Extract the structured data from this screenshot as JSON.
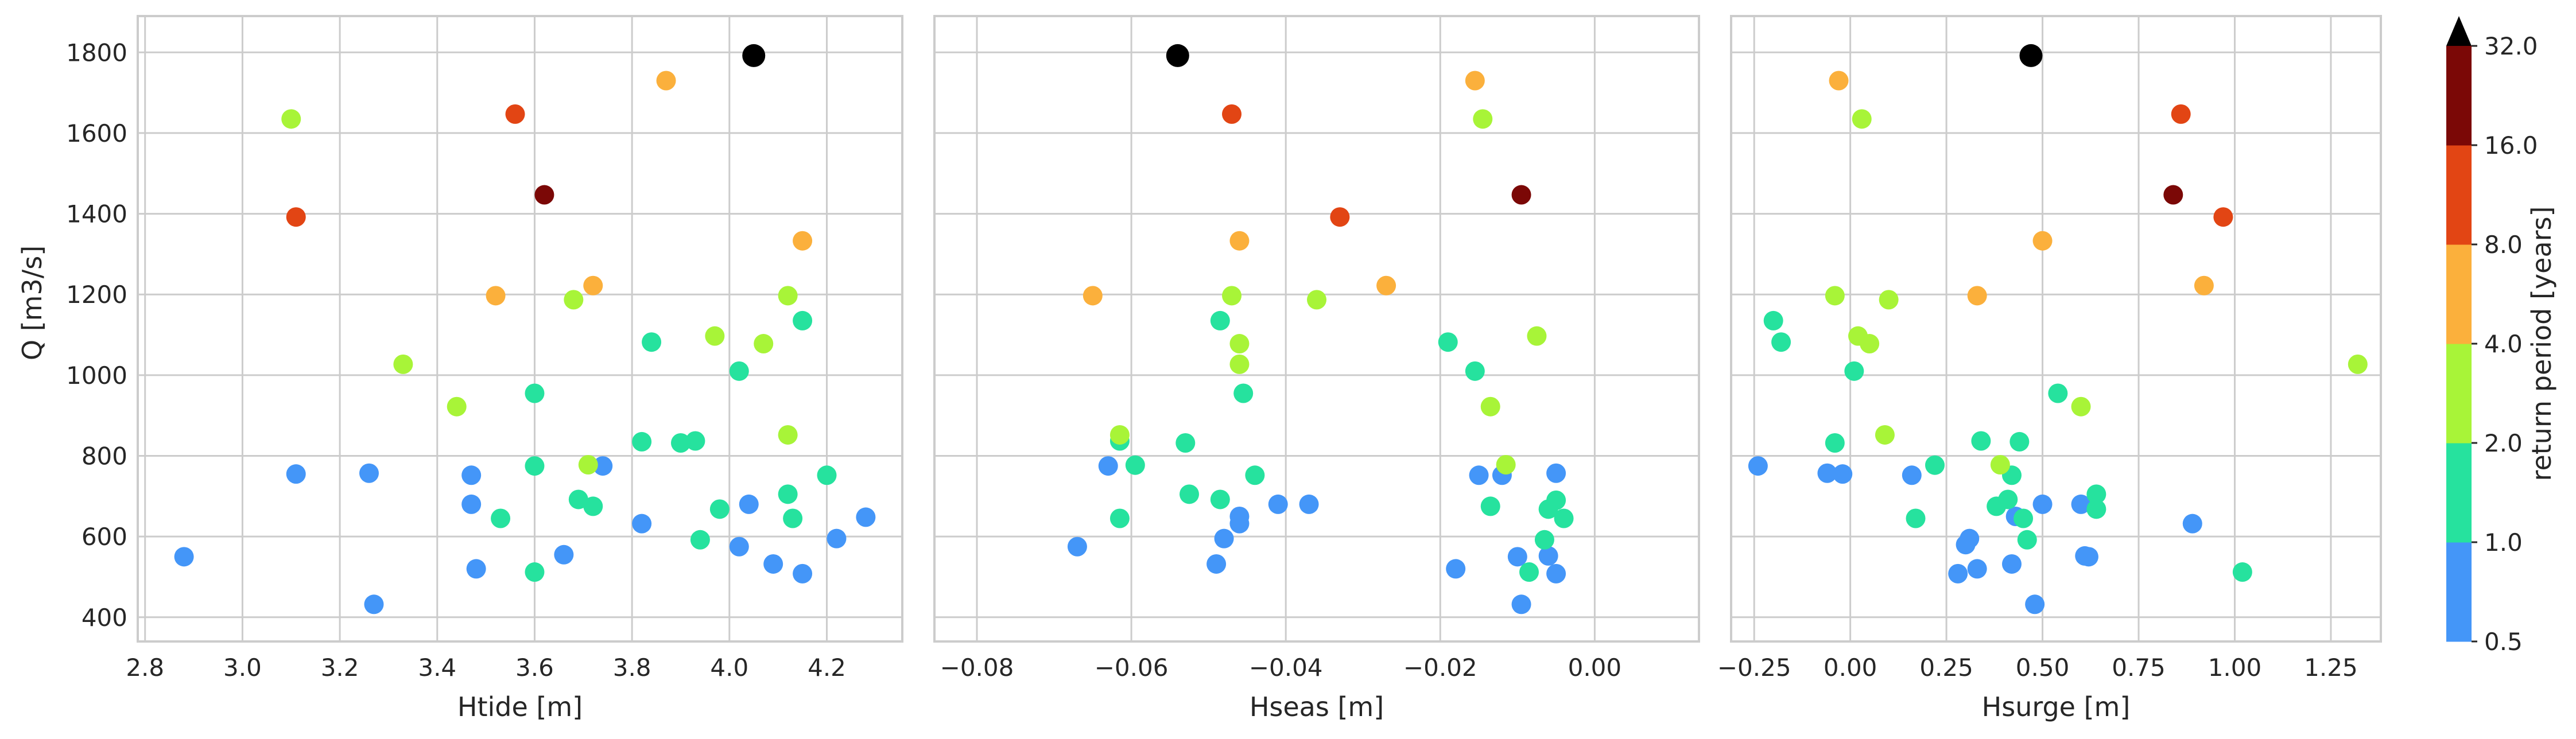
{
  "chart_data": {
    "type": "scatter",
    "colorbar": {
      "label": "return period [years]",
      "ticks": [
        "0.5",
        "1.0",
        "2.0",
        "4.0",
        "8.0",
        "16.0",
        "32.0"
      ],
      "bins": [
        {
          "range": [
            0.5,
            1.0
          ],
          "color": "#4496f8"
        },
        {
          "range": [
            1.0,
            2.0
          ],
          "color": "#26e29e"
        },
        {
          "range": [
            2.0,
            4.0
          ],
          "color": "#a8f438"
        },
        {
          "range": [
            4.0,
            8.0
          ],
          "color": "#fbb03c"
        },
        {
          "range": [
            8.0,
            16.0
          ],
          "color": "#e24514"
        },
        {
          "range": [
            16.0,
            32.0
          ],
          "color": "#7b0806"
        },
        {
          "range": [
            32.0,
            null
          ],
          "color": "#000000"
        }
      ],
      "extend": "max"
    },
    "ylabel": "Q [m3/s]",
    "ylim": [
      340,
      1890
    ],
    "yticks": [
      "400",
      "600",
      "800",
      "1000",
      "1200",
      "1400",
      "1600",
      "1800"
    ],
    "ytick_values": [
      400,
      600,
      800,
      1000,
      1200,
      1400,
      1600,
      1800
    ],
    "grid": true,
    "panels": [
      {
        "xlabel": "Htide [m]",
        "xlim": [
          2.785,
          4.355
        ],
        "xticks": [
          "2.8",
          "3.0",
          "3.2",
          "3.4",
          "3.6",
          "3.8",
          "4.0",
          "4.2"
        ],
        "xtick_values": [
          2.8,
          3.0,
          3.2,
          3.4,
          3.6,
          3.8,
          4.0,
          4.2
        ],
        "points": [
          [
            2.88,
            550,
            1
          ],
          [
            3.11,
            755,
            1
          ],
          [
            3.26,
            757,
            1
          ],
          [
            3.27,
            432,
            1
          ],
          [
            3.47,
            752,
            1
          ],
          [
            3.47,
            680,
            1
          ],
          [
            3.48,
            520,
            1
          ],
          [
            3.66,
            555,
            1
          ],
          [
            3.74,
            775,
            1
          ],
          [
            3.82,
            632,
            1
          ],
          [
            4.02,
            575,
            1
          ],
          [
            4.04,
            680,
            1
          ],
          [
            4.09,
            532,
            1
          ],
          [
            4.15,
            508,
            1
          ],
          [
            4.22,
            595,
            1
          ],
          [
            4.28,
            648,
            1
          ],
          [
            3.53,
            645,
            2
          ],
          [
            3.6,
            955,
            2
          ],
          [
            3.6,
            775,
            2
          ],
          [
            3.6,
            512,
            2
          ],
          [
            3.69,
            692,
            2
          ],
          [
            3.72,
            675,
            2
          ],
          [
            3.82,
            835,
            2
          ],
          [
            3.84,
            1082,
            2
          ],
          [
            3.9,
            832,
            2
          ],
          [
            3.93,
            837,
            2
          ],
          [
            3.94,
            592,
            2
          ],
          [
            3.98,
            668,
            2
          ],
          [
            4.02,
            1010,
            2
          ],
          [
            4.12,
            705,
            2
          ],
          [
            4.13,
            645,
            2
          ],
          [
            4.15,
            1135,
            2
          ],
          [
            4.2,
            752,
            2
          ],
          [
            3.1,
            1635,
            3
          ],
          [
            3.33,
            1027,
            3
          ],
          [
            3.44,
            922,
            3
          ],
          [
            3.68,
            1187,
            3
          ],
          [
            3.71,
            778,
            3
          ],
          [
            3.97,
            1097,
            3
          ],
          [
            4.07,
            1078,
            3
          ],
          [
            4.12,
            1197,
            3
          ],
          [
            4.12,
            852,
            3
          ],
          [
            3.52,
            1197,
            4
          ],
          [
            3.72,
            1222,
            4
          ],
          [
            3.87,
            1730,
            4
          ],
          [
            4.15,
            1333,
            4
          ],
          [
            3.11,
            1392,
            5
          ],
          [
            3.56,
            1647,
            5
          ],
          [
            3.62,
            1447,
            6
          ],
          [
            4.05,
            1792,
            7
          ]
        ]
      },
      {
        "xlabel": "Hseas [m]",
        "xlim": [
          -0.0855,
          0.0135
        ],
        "xticks": [
          "−0.08",
          "−0.06",
          "−0.04",
          "−0.02",
          "0.00"
        ],
        "xtick_values": [
          -0.08,
          -0.06,
          -0.04,
          -0.02,
          0.0
        ],
        "points": [
          [
            -0.067,
            575,
            1
          ],
          [
            -0.063,
            775,
            1
          ],
          [
            -0.049,
            532,
            1
          ],
          [
            -0.048,
            595,
            1
          ],
          [
            -0.046,
            632,
            1
          ],
          [
            -0.046,
            650,
            1
          ],
          [
            -0.041,
            680,
            1
          ],
          [
            -0.037,
            680,
            1
          ],
          [
            -0.018,
            520,
            1
          ],
          [
            -0.015,
            752,
            1
          ],
          [
            -0.012,
            752,
            1
          ],
          [
            -0.01,
            550,
            1
          ],
          [
            -0.0095,
            432,
            1
          ],
          [
            -0.006,
            552,
            1
          ],
          [
            -0.005,
            508,
            1
          ],
          [
            -0.005,
            757,
            1
          ],
          [
            -0.0615,
            837,
            2
          ],
          [
            -0.0615,
            645,
            2
          ],
          [
            -0.0595,
            777,
            2
          ],
          [
            -0.053,
            832,
            2
          ],
          [
            -0.0525,
            705,
            2
          ],
          [
            -0.0485,
            692,
            2
          ],
          [
            -0.0485,
            1135,
            2
          ],
          [
            -0.0455,
            955,
            2
          ],
          [
            -0.044,
            752,
            2
          ],
          [
            -0.019,
            1082,
            2
          ],
          [
            -0.0155,
            1010,
            2
          ],
          [
            -0.0135,
            675,
            2
          ],
          [
            -0.0085,
            512,
            2
          ],
          [
            -0.0065,
            592,
            2
          ],
          [
            -0.006,
            668,
            2
          ],
          [
            -0.005,
            690,
            2
          ],
          [
            -0.004,
            645,
            2
          ],
          [
            -0.0615,
            852,
            3
          ],
          [
            -0.047,
            1197,
            3
          ],
          [
            -0.046,
            1078,
            3
          ],
          [
            -0.046,
            1027,
            3
          ],
          [
            -0.036,
            1187,
            3
          ],
          [
            -0.0145,
            1635,
            3
          ],
          [
            -0.0135,
            922,
            3
          ],
          [
            -0.0115,
            778,
            3
          ],
          [
            -0.0075,
            1097,
            3
          ],
          [
            -0.065,
            1197,
            4
          ],
          [
            -0.046,
            1333,
            4
          ],
          [
            -0.027,
            1222,
            4
          ],
          [
            -0.0155,
            1730,
            4
          ],
          [
            -0.047,
            1647,
            5
          ],
          [
            -0.033,
            1392,
            5
          ],
          [
            -0.0095,
            1447,
            6
          ],
          [
            -0.054,
            1792,
            7
          ]
        ]
      },
      {
        "xlabel": "Hsurge [m]",
        "xlim": [
          -0.31,
          1.38
        ],
        "xticks": [
          "−0.25",
          "0.00",
          "0.25",
          "0.50",
          "0.75",
          "1.00",
          "1.25"
        ],
        "xtick_values": [
          -0.25,
          0.0,
          0.25,
          0.5,
          0.75,
          1.0,
          1.25
        ],
        "points": [
          [
            -0.24,
            775,
            1
          ],
          [
            -0.06,
            757,
            1
          ],
          [
            -0.02,
            755,
            1
          ],
          [
            0.16,
            752,
            1
          ],
          [
            0.28,
            508,
            1
          ],
          [
            0.3,
            580,
            1
          ],
          [
            0.31,
            595,
            1
          ],
          [
            0.33,
            520,
            1
          ],
          [
            0.42,
            532,
            1
          ],
          [
            0.43,
            650,
            1
          ],
          [
            0.48,
            432,
            1
          ],
          [
            0.5,
            680,
            1
          ],
          [
            0.6,
            680,
            1
          ],
          [
            0.61,
            552,
            1
          ],
          [
            0.62,
            550,
            1
          ],
          [
            0.89,
            632,
            1
          ],
          [
            -0.2,
            1135,
            2
          ],
          [
            -0.18,
            1082,
            2
          ],
          [
            -0.04,
            832,
            2
          ],
          [
            0.01,
            1010,
            2
          ],
          [
            0.17,
            645,
            2
          ],
          [
            0.22,
            777,
            2
          ],
          [
            0.34,
            837,
            2
          ],
          [
            0.38,
            675,
            2
          ],
          [
            0.41,
            692,
            2
          ],
          [
            0.42,
            752,
            2
          ],
          [
            0.44,
            835,
            2
          ],
          [
            0.45,
            645,
            2
          ],
          [
            0.46,
            592,
            2
          ],
          [
            0.54,
            955,
            2
          ],
          [
            0.64,
            705,
            2
          ],
          [
            0.64,
            668,
            2
          ],
          [
            1.02,
            512,
            2
          ],
          [
            -0.04,
            1197,
            3
          ],
          [
            0.03,
            1635,
            3
          ],
          [
            0.02,
            1097,
            3
          ],
          [
            0.05,
            1078,
            3
          ],
          [
            0.09,
            852,
            3
          ],
          [
            0.1,
            1187,
            3
          ],
          [
            0.39,
            778,
            3
          ],
          [
            0.6,
            922,
            3
          ],
          [
            1.32,
            1027,
            3
          ],
          [
            -0.03,
            1730,
            4
          ],
          [
            0.33,
            1197,
            4
          ],
          [
            0.5,
            1333,
            4
          ],
          [
            0.92,
            1222,
            4
          ],
          [
            0.86,
            1647,
            5
          ],
          [
            0.97,
            1392,
            5
          ],
          [
            0.84,
            1447,
            6
          ],
          [
            0.47,
            1792,
            7
          ]
        ]
      }
    ]
  }
}
